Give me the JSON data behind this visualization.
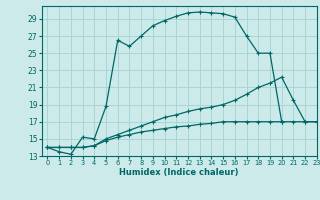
{
  "title": "",
  "xlabel": "Humidex (Indice chaleur)",
  "xlim": [
    -0.5,
    23
  ],
  "ylim": [
    13,
    30.5
  ],
  "yticks": [
    13,
    15,
    17,
    19,
    21,
    23,
    25,
    27,
    29
  ],
  "xticks": [
    0,
    1,
    2,
    3,
    4,
    5,
    6,
    7,
    8,
    9,
    10,
    11,
    12,
    13,
    14,
    15,
    16,
    17,
    18,
    19,
    20,
    21,
    22,
    23
  ],
  "bg_color": "#cceaea",
  "grid_color": "#aad4d4",
  "line_color": "#006666",
  "curves": [
    {
      "x": [
        0,
        1,
        2,
        3,
        4,
        5,
        6,
        7,
        8,
        9,
        10,
        11,
        12,
        13,
        14,
        15,
        16,
        17,
        18,
        19,
        20
      ],
      "y": [
        14,
        13.5,
        13.2,
        15.2,
        15.0,
        18.8,
        26.5,
        25.8,
        27.0,
        28.2,
        28.8,
        29.3,
        29.7,
        29.8,
        29.7,
        29.6,
        29.2,
        27.0,
        25.0,
        25.0,
        17.0
      ]
    },
    {
      "x": [
        0,
        1,
        2,
        3,
        4,
        5,
        6,
        7,
        8,
        9,
        10,
        11,
        12,
        13,
        14,
        15,
        16,
        17,
        18,
        19,
        20,
        21,
        22,
        23
      ],
      "y": [
        14.0,
        14.0,
        14.0,
        14.0,
        14.2,
        15.0,
        15.5,
        16.0,
        16.5,
        17.0,
        17.5,
        17.8,
        18.2,
        18.5,
        18.7,
        19.0,
        19.5,
        20.2,
        21.0,
        21.5,
        22.2,
        19.5,
        17.0,
        17.0
      ]
    },
    {
      "x": [
        0,
        1,
        2,
        3,
        4,
        5,
        6,
        7,
        8,
        9,
        10,
        11,
        12,
        13,
        14,
        15,
        16,
        17,
        18,
        19,
        20,
        21,
        22,
        23
      ],
      "y": [
        14.0,
        14.0,
        14.0,
        14.0,
        14.2,
        14.8,
        15.2,
        15.5,
        15.8,
        16.0,
        16.2,
        16.4,
        16.5,
        16.7,
        16.8,
        17.0,
        17.0,
        17.0,
        17.0,
        17.0,
        17.0,
        17.0,
        17.0,
        17.0
      ]
    }
  ]
}
